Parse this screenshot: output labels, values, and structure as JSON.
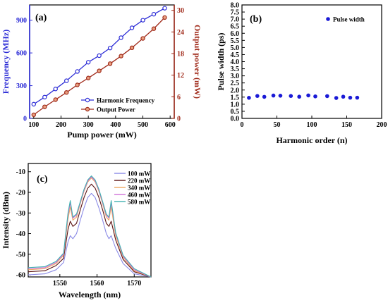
{
  "colors": {
    "frequency": "#2b2bd6",
    "power": "#a02a1a",
    "pulse": "#1a1ad6",
    "spectra": [
      "#8a8ae6",
      "#5a1010",
      "#f0a860",
      "#d070d8",
      "#40b0b0"
    ]
  },
  "chart_data": [
    {
      "type": "line",
      "panel_label": "(a)",
      "xlabel": "Pump power (mW)",
      "ylabel": "Frequency (MHz)",
      "ylabel_right": "Output power (mW)",
      "xlim": [
        85,
        615
      ],
      "ylim": [
        0,
        1040
      ],
      "ylim_right": [
        0,
        31.5
      ],
      "xticks": [
        100,
        200,
        300,
        400,
        500,
        600
      ],
      "yticks": [
        0,
        300,
        600,
        900
      ],
      "yticks_right": [
        0,
        6,
        12,
        18,
        24,
        30
      ],
      "legend_position": "bottom-right",
      "series": [
        {
          "name": "Harmonic Frequency",
          "axis": "left",
          "x": [
            100,
            140,
            180,
            220,
            260,
            300,
            340,
            380,
            420,
            460,
            500,
            540,
            580
          ],
          "values": [
            130,
            195,
            270,
            345,
            430,
            515,
            575,
            645,
            740,
            830,
            900,
            955,
            1010
          ]
        },
        {
          "name": "Output Power",
          "axis": "right",
          "x": [
            100,
            140,
            180,
            220,
            260,
            300,
            340,
            380,
            420,
            460,
            500,
            540,
            580
          ],
          "values": [
            1.0,
            3.2,
            5.2,
            7.2,
            9.3,
            11.2,
            13.2,
            15.2,
            17.3,
            19.6,
            22.2,
            24.9,
            28.0
          ]
        }
      ]
    },
    {
      "type": "scatter",
      "panel_label": "(b)",
      "xlabel": "Harmonic order (n)",
      "ylabel": "Pulse width (ps)",
      "xlim": [
        0,
        200
      ],
      "ylim": [
        0,
        8
      ],
      "xticks": [
        0,
        50,
        100,
        150,
        200
      ],
      "yticks": [
        0.0,
        0.5,
        1.0,
        1.5,
        2.0,
        2.5,
        3.0,
        3.5,
        4.0,
        4.5,
        5.0,
        5.5,
        6.0,
        6.5,
        7.0,
        7.5,
        8.0
      ],
      "yticklabels": [
        "0.0",
        "0.5",
        "1.0",
        "1.5",
        "2.0",
        "2.5",
        "3.0",
        "3.5",
        "4.0",
        "4.5",
        "5.0",
        "5.5",
        "6.0",
        "6.5",
        "7.0",
        "7.5",
        "8.0"
      ],
      "legend_position": "top-right",
      "series": [
        {
          "name": "Pulse width",
          "x": [
            10,
            22,
            32,
            45,
            55,
            70,
            82,
            95,
            105,
            122,
            135,
            145,
            155,
            165
          ],
          "values": [
            1.45,
            1.58,
            1.52,
            1.61,
            1.6,
            1.58,
            1.53,
            1.62,
            1.55,
            1.57,
            1.44,
            1.53,
            1.46,
            1.46
          ]
        }
      ]
    },
    {
      "type": "line",
      "panel_label": "(c)",
      "xlabel": "Wavelength (nm)",
      "ylabel": "Intensity (dBm)",
      "xlim": [
        1541.5,
        1574.5
      ],
      "ylim": [
        -61,
        -6
      ],
      "xticks": [
        1550,
        1560,
        1570
      ],
      "yticks": [
        -60,
        -50,
        -40,
        -30,
        -20,
        -10
      ],
      "legend_position": "top-right",
      "series": [
        {
          "name": "100 mW",
          "peak": -20.5,
          "sideband": -41.0,
          "floor": -60.0,
          "x": [
            1541.5,
            1546,
            1549,
            1551,
            1552.2,
            1552.8,
            1553.5,
            1554.5,
            1555.5,
            1556.5,
            1557.5,
            1558.5,
            1559.5,
            1560.5,
            1561.5,
            1562.5,
            1563.2,
            1563.8,
            1565,
            1567,
            1570,
            1574.5
          ],
          "values": [
            -60.0,
            -59.5,
            -57.5,
            -54.0,
            -44.0,
            -41.0,
            -42.5,
            -40.0,
            -33.5,
            -27.5,
            -22.5,
            -20.5,
            -22.5,
            -27.5,
            -33.5,
            -40.0,
            -42.5,
            -41.0,
            -47.0,
            -54.5,
            -59.5,
            -61.0
          ]
        },
        {
          "name": "220 mW",
          "peak": -16.0,
          "sideband": -34.0,
          "floor": -58.5,
          "x": [
            1541.5,
            1546,
            1549,
            1551,
            1552.2,
            1552.8,
            1553.5,
            1554.5,
            1555.5,
            1556.5,
            1557.5,
            1558.5,
            1559.5,
            1560.5,
            1561.5,
            1562.5,
            1563.2,
            1563.8,
            1565,
            1567,
            1570,
            1574.5
          ],
          "values": [
            -58.5,
            -58.0,
            -55.5,
            -52.0,
            -38.0,
            -34.0,
            -36.5,
            -35.0,
            -28.5,
            -22.5,
            -18.0,
            -16.0,
            -18.0,
            -22.5,
            -28.5,
            -35.0,
            -36.5,
            -34.0,
            -43.0,
            -52.5,
            -58.5,
            -61.0
          ]
        },
        {
          "name": "340 mW",
          "peak": -13.0,
          "sideband": -27.0,
          "floor": -57.5,
          "x": [
            1541.5,
            1546,
            1549,
            1551,
            1552.2,
            1552.8,
            1553.5,
            1554.5,
            1555.5,
            1556.5,
            1557.5,
            1558.5,
            1559.5,
            1560.5,
            1561.5,
            1562.5,
            1563.2,
            1563.8,
            1565,
            1567,
            1570,
            1574.5
          ],
          "values": [
            -57.5,
            -57.0,
            -54.5,
            -50.5,
            -33.0,
            -27.0,
            -33.5,
            -32.0,
            -25.5,
            -19.5,
            -15.0,
            -13.0,
            -15.0,
            -19.5,
            -25.5,
            -32.0,
            -33.5,
            -27.0,
            -41.0,
            -51.5,
            -58.0,
            -61.0
          ]
        },
        {
          "name": "460 mW",
          "peak": -12.5,
          "sideband": -25.0,
          "floor": -57.0,
          "x": [
            1541.5,
            1546,
            1549,
            1551,
            1552.2,
            1552.8,
            1553.5,
            1554.5,
            1555.5,
            1556.5,
            1557.5,
            1558.5,
            1559.5,
            1560.5,
            1561.5,
            1562.5,
            1563.2,
            1563.8,
            1565,
            1567,
            1570,
            1574.5
          ],
          "values": [
            -57.0,
            -56.5,
            -54.0,
            -50.0,
            -31.0,
            -25.0,
            -32.5,
            -31.0,
            -25.0,
            -19.0,
            -14.5,
            -12.5,
            -14.5,
            -19.0,
            -25.0,
            -31.0,
            -32.5,
            -25.0,
            -40.0,
            -51.0,
            -57.5,
            -61.0
          ]
        },
        {
          "name": "580 mW",
          "peak": -12.0,
          "sideband": -24.0,
          "floor": -56.5,
          "x": [
            1541.5,
            1546,
            1549,
            1551,
            1552.2,
            1552.8,
            1553.5,
            1554.5,
            1555.5,
            1556.5,
            1557.5,
            1558.5,
            1559.5,
            1560.5,
            1561.5,
            1562.5,
            1563.2,
            1563.8,
            1565,
            1567,
            1570,
            1574.5
          ],
          "values": [
            -56.5,
            -56.0,
            -53.5,
            -49.5,
            -30.0,
            -24.0,
            -32.0,
            -30.5,
            -24.5,
            -18.5,
            -14.0,
            -12.0,
            -14.0,
            -18.5,
            -24.5,
            -30.5,
            -32.0,
            -24.0,
            -39.5,
            -50.5,
            -57.0,
            -61.0
          ]
        }
      ]
    }
  ]
}
